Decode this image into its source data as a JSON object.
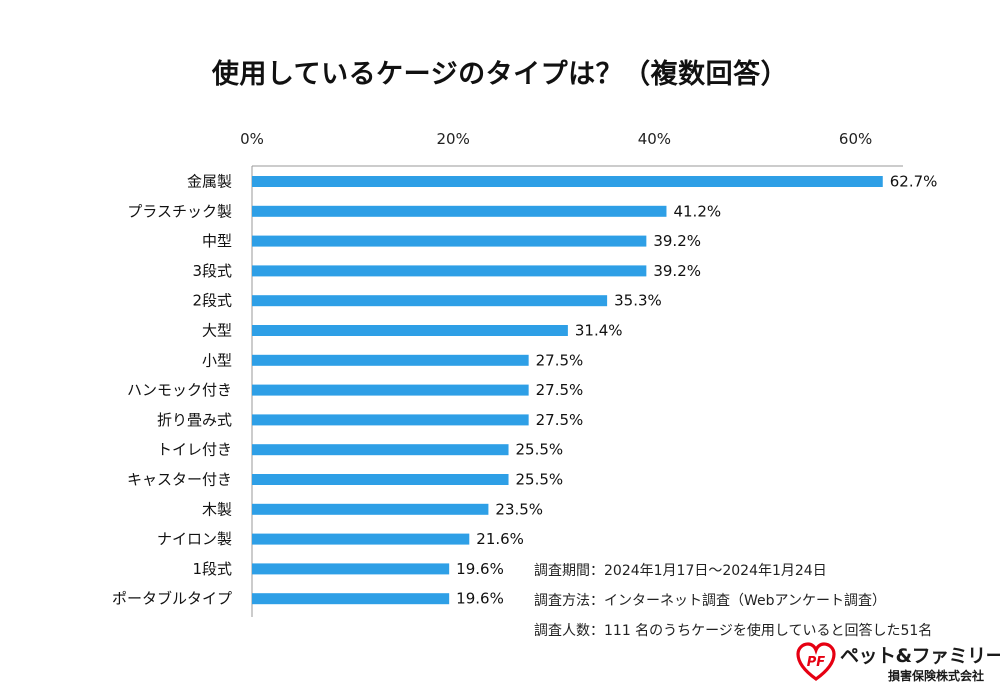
{
  "chart_data": {
    "type": "bar",
    "orientation": "horizontal",
    "title": "使用しているケージのタイプは？（複数回答）",
    "categories": [
      "金属製",
      "プラスチック製",
      "中型",
      "3段式",
      "2段式",
      "大型",
      "小型",
      "ハンモック付き",
      "折り畳み式",
      "トイレ付き",
      "キャスター付き",
      "木製",
      "ナイロン製",
      "1段式",
      "ポータブルタイプ"
    ],
    "values": [
      62.7,
      41.2,
      39.2,
      39.2,
      35.3,
      31.4,
      27.5,
      27.5,
      27.5,
      25.5,
      25.5,
      23.5,
      21.6,
      19.6,
      19.6
    ],
    "value_labels": [
      "62.7%",
      "41.2%",
      "39.2%",
      "39.2%",
      "35.3%",
      "31.4%",
      "27.5%",
      "27.5%",
      "27.5%",
      "25.5%",
      "25.5%",
      "23.5%",
      "21.6%",
      "19.6%",
      "19.6%"
    ],
    "x_ticks": [
      0,
      20,
      40,
      60
    ],
    "x_tick_labels": [
      "0%",
      "20%",
      "40%",
      "60%"
    ],
    "xlim": [
      0,
      65
    ],
    "xaxis_position": "top",
    "grid": false,
    "legend": "none",
    "bar_color": "#2e9fe6",
    "axis_color": "#999999"
  },
  "survey": {
    "period": "調査期間：2024年1月17日～2024年1月24日",
    "method": "調査方法：インターネット調査（Webアンケート調査）",
    "respondents": "調査人数：111 名のうちケージを使用していると回答した51名"
  },
  "logo": {
    "mark_text": "PF",
    "name": "ペット&ファミリー",
    "sub": "損害保険株式会社",
    "accent_color": "#e60012"
  }
}
